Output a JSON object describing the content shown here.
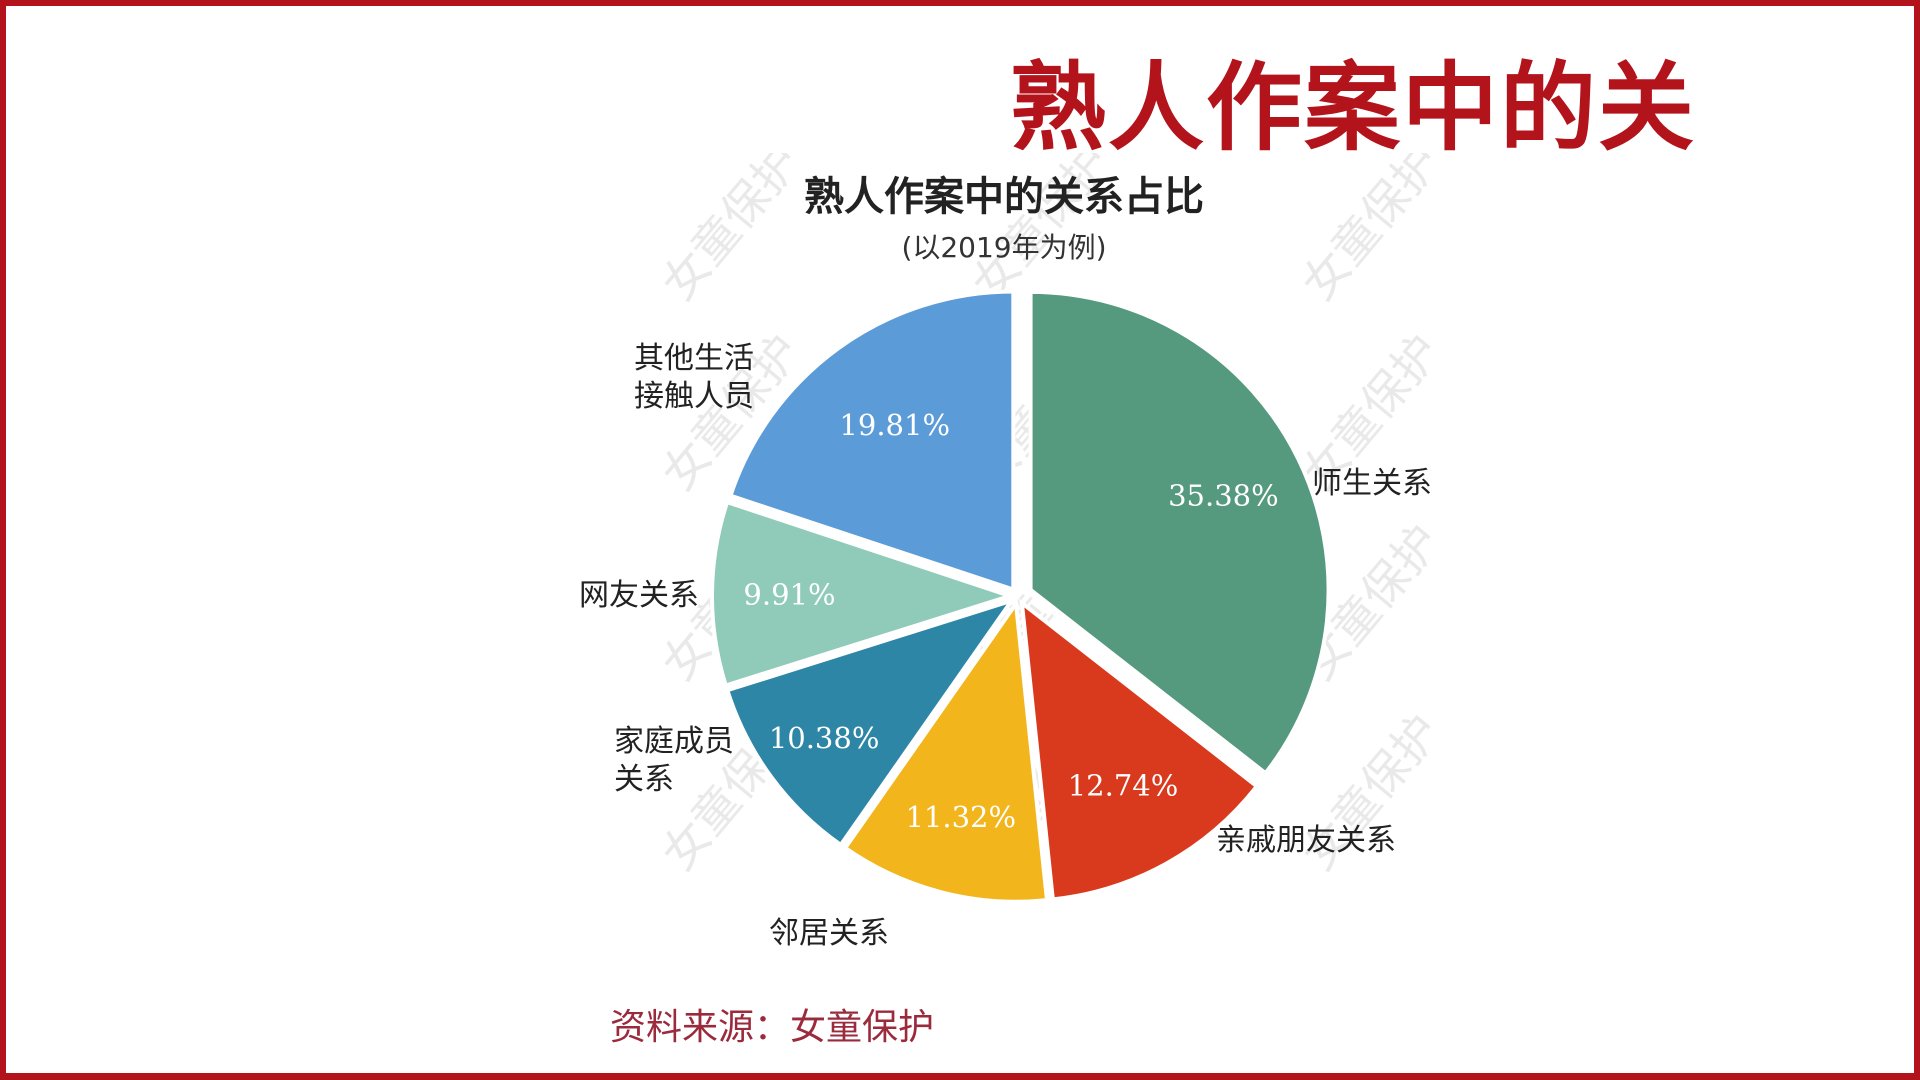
{
  "slide": {
    "title": "熟人作案中的关",
    "source": "资料来源：女童保护"
  },
  "chart_data": {
    "type": "pie",
    "title": "熟人作案中的关系占比",
    "subtitle": "(以2019年为例)",
    "slices": [
      {
        "label": "师生关系",
        "value": 35.38,
        "value_label": "35.38%",
        "color": "#55997f"
      },
      {
        "label": "亲戚朋友关系",
        "value": 12.74,
        "value_label": "12.74%",
        "color": "#d93a1e"
      },
      {
        "label": "邻居关系",
        "value": 11.32,
        "value_label": "11.32%",
        "color": "#f2b51c"
      },
      {
        "label": "家庭成员关系",
        "value": 10.38,
        "value_label": "10.38%",
        "color": "#2e86a6"
      },
      {
        "label": "网友关系",
        "value": 9.91,
        "value_label": "9.91%",
        "color": "#8fcbb8"
      },
      {
        "label": "其他生活接触人员",
        "value": 19.81,
        "value_label": "19.81%",
        "color": "#5b9bd8"
      }
    ],
    "watermark": "女童保护"
  }
}
